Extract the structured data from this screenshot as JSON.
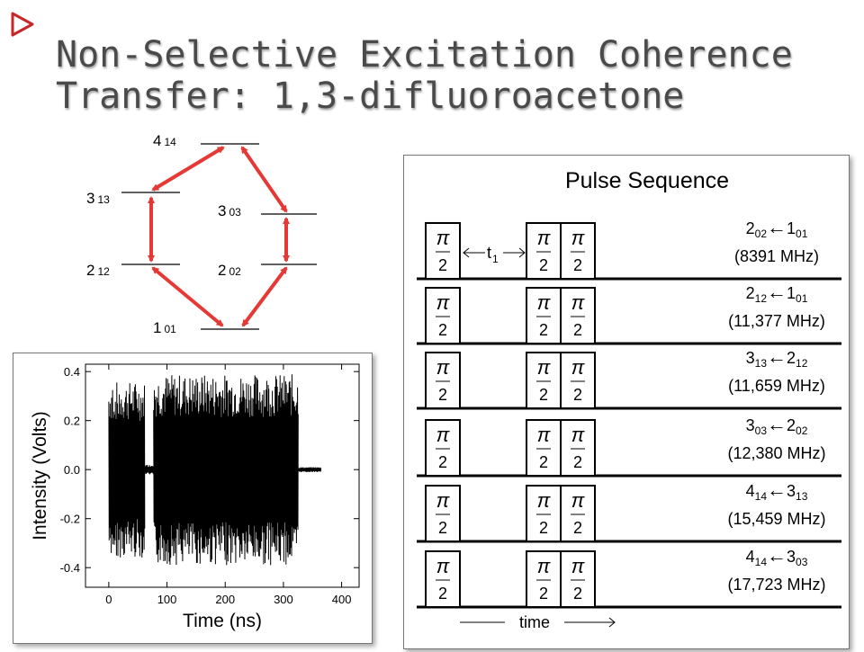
{
  "slide": {
    "title_line1": "Non-Selective Excitation Coherence",
    "title_line2": "Transfer: 1,3-difluoroacetone",
    "accent_color": "#c62828",
    "bullet_icon": "triangle-outline-bullet"
  },
  "energy_diagram": {
    "levels": [
      {
        "J": "4",
        "sub": "14"
      },
      {
        "J": "3",
        "sub": "13"
      },
      {
        "J": "3",
        "sub": "03"
      },
      {
        "J": "2",
        "sub": "12"
      },
      {
        "J": "2",
        "sub": "02"
      },
      {
        "J": "1",
        "sub": "01"
      }
    ],
    "arrow_color": "#e53935"
  },
  "pulse_sequence": {
    "title": "Pulse Sequence",
    "pi_symbol": "π",
    "denominator": "2",
    "delay_label": "t",
    "delay_sub": "1",
    "time_label": "time",
    "transitions": [
      {
        "upper": "2",
        "upper_sub": "02",
        "arrow": "←",
        "lower": "1",
        "lower_sub": "01",
        "freq": "(8391 MHz)"
      },
      {
        "upper": "2",
        "upper_sub": "12",
        "arrow": "←",
        "lower": "1",
        "lower_sub": "01",
        "freq": "(11,377 MHz)"
      },
      {
        "upper": "3",
        "upper_sub": "13",
        "arrow": "←",
        "lower": "2",
        "lower_sub": "12",
        "freq": "(11,659 MHz)"
      },
      {
        "upper": "3",
        "upper_sub": "03",
        "arrow": "←",
        "lower": "2",
        "lower_sub": "02",
        "freq": "(12,380 MHz)"
      },
      {
        "upper": "4",
        "upper_sub": "14",
        "arrow": "←",
        "lower": "3",
        "lower_sub": "13",
        "freq": "(15,459 MHz)"
      },
      {
        "upper": "4",
        "upper_sub": "14",
        "arrow": "←",
        "lower": "3",
        "lower_sub": "03",
        "freq": "(17,723 MHz)"
      }
    ]
  },
  "chart_data": {
    "type": "line",
    "xlabel": "Time (ns)",
    "ylabel": "Intensity (Volts)",
    "xlim": [
      -40,
      430
    ],
    "ylim": [
      -0.48,
      0.43
    ],
    "xticks": [
      "0",
      "100",
      "200",
      "300",
      "400"
    ],
    "xtick_values": [
      0,
      100,
      200,
      300,
      400
    ],
    "yticks": [
      "0.4",
      "0.2",
      "0.0",
      "-0.2",
      "-0.4"
    ],
    "ytick_values": [
      0.4,
      0.2,
      0.0,
      -0.2,
      -0.4
    ],
    "series": [
      {
        "segments": [
          {
            "x_start": 0,
            "x_end": 62,
            "amplitude": 0.36
          },
          {
            "x_start": 62,
            "x_end": 77,
            "amplitude": 0.02
          },
          {
            "x_start": 77,
            "x_end": 326,
            "amplitude": 0.39
          },
          {
            "x_start": 326,
            "x_end": 365,
            "amplitude": 0.01
          }
        ]
      }
    ]
  }
}
